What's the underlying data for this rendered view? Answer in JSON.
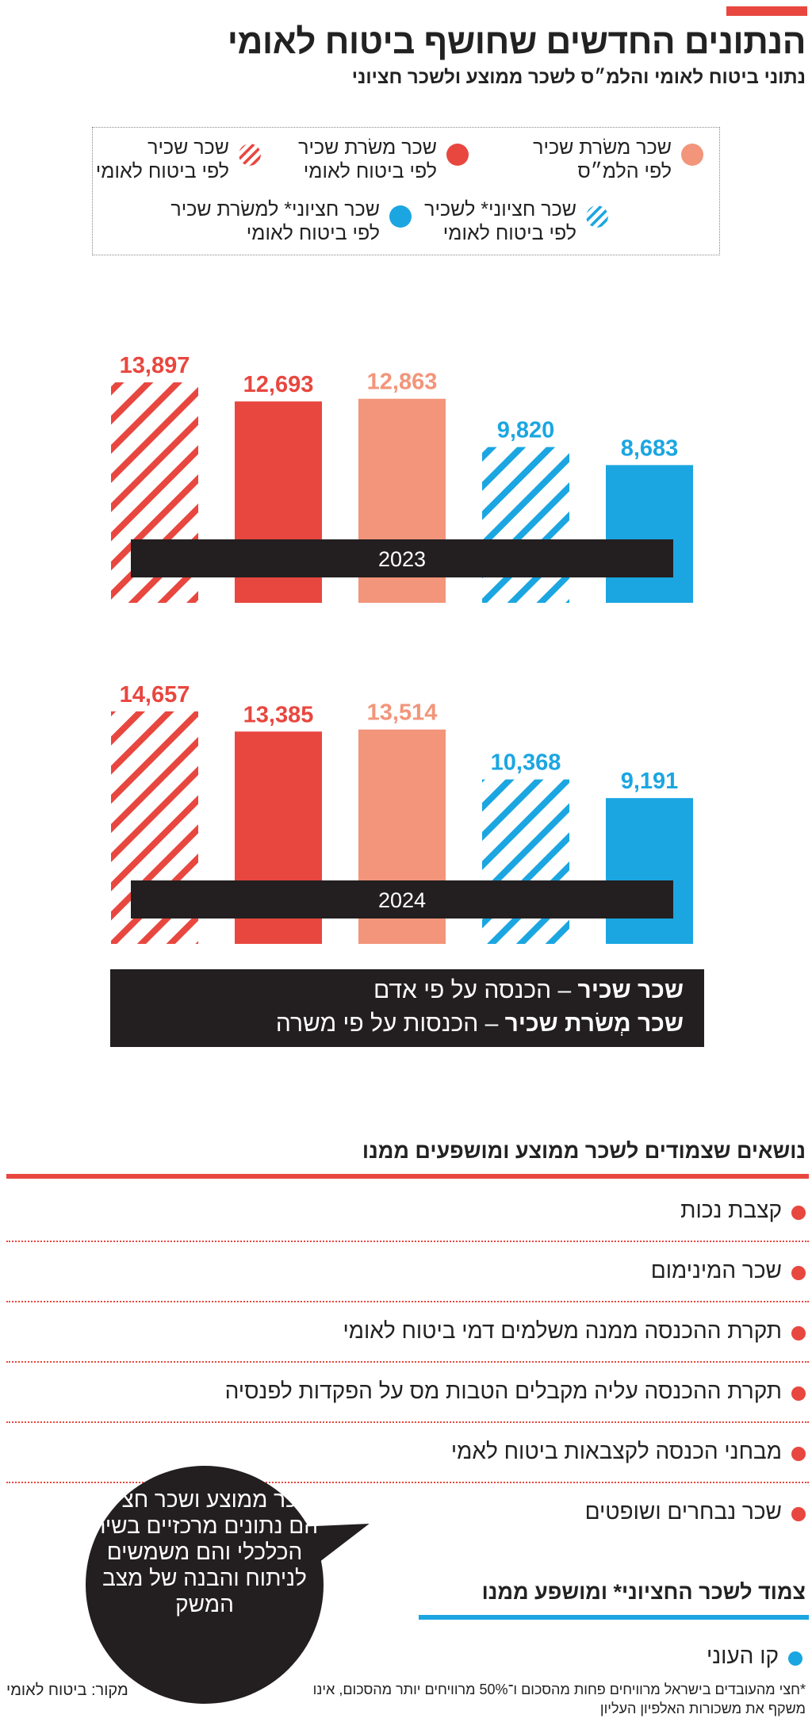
{
  "header": {
    "title": "הנתונים החדשים שחושף ביטוח לאומי",
    "subtitle": "נתוני ביטוח לאומי והלמ״ס לשכר ממוצע ולשכר חציוני"
  },
  "colors": {
    "accent_red": "#e8473f",
    "light_salmon": "#f2957a",
    "blue": "#1ba6e1",
    "dark": "#231f20"
  },
  "legend": {
    "items": [
      {
        "line1": "שכר משׂרת שכיר",
        "line2": "לפי הלמ״ס",
        "color": "#f2957a",
        "pattern": "solid"
      },
      {
        "line1": "שכר משׂרת שכיר",
        "line2": "לפי ביטוח לאומי",
        "color": "#e8473f",
        "pattern": "solid"
      },
      {
        "line1": "שכר שכיר",
        "line2": "לפי ביטוח לאומי",
        "color": "#e8473f",
        "pattern": "hatched"
      },
      {
        "line1": "שכר חציוני* לשכיר",
        "line2": "לפי ביטוח לאומי",
        "color": "#1ba6e1",
        "pattern": "hatched"
      },
      {
        "line1": "שכר חציוני* למשׂרת שכיר",
        "line2": "לפי ביטוח לאומי",
        "color": "#1ba6e1",
        "pattern": "solid"
      }
    ]
  },
  "chart_data": {
    "type": "bar",
    "categories": [
      "שכר שכיר לפי ביטוח לאומי",
      "שכר משׂרת שכיר לפי ביטוח לאומי",
      "שכר משׂרת שכיר לפי הלמ״ס",
      "שכר חציוני* לשכיר לפי ביטוח לאומי",
      "שכר חציוני* למשׂרת שכיר לפי ביטוח לאומי"
    ],
    "series": [
      {
        "name": "2023",
        "values": [
          13897,
          12693,
          12863,
          9820,
          8683
        ]
      },
      {
        "name": "2024",
        "values": [
          14657,
          13385,
          13514,
          10368,
          9191
        ]
      }
    ],
    "value_labels": {
      "2023": [
        "13,897",
        "12,693",
        "12,863",
        "9,820",
        "8,683"
      ],
      "2024": [
        "14,657",
        "13,385",
        "13,514",
        "10,368",
        "9,191"
      ]
    },
    "bar_colors": [
      "#e8473f",
      "#e8473f",
      "#f2957a",
      "#1ba6e1",
      "#1ba6e1"
    ],
    "bar_patterns": [
      "hatched",
      "solid",
      "solid",
      "hatched",
      "solid"
    ],
    "label_colors": [
      "#e8473f",
      "#e8473f",
      "#f2957a",
      "#1ba6e1",
      "#1ba6e1"
    ],
    "ylim": [
      0,
      15000
    ],
    "grid": false,
    "legend": "top"
  },
  "definitions": {
    "line1_bold": "שכר שכיר",
    "line1_rest": " – הכנסה על פי אדם",
    "line2_bold": "שכר מְשׂרת שכיר",
    "line2_rest": " – הכנסות על פי משרה"
  },
  "topics": {
    "title": "נושאים שצמודים לשכר ממוצע ומושפעים ממנו",
    "items": [
      "קצבת נכות",
      "שכר המינימום",
      "תקרת ההכנסה ממנה משלמים דמי ביטוח לאומי",
      "תקרת ההכנסה עליה מקבלים הטבות מס על הפקדות לפנסיה",
      "מבחני הכנסה לקצבאות ביטוח לאמי",
      "שכר נבחרים ושופטים"
    ]
  },
  "bubble": {
    "text": "שכר ממוצע ושכר חציוני הם נתונים מרכזיים בשיח הכלכלי והם משמשים לניתוח והבנה של מצב המשק"
  },
  "median_topics": {
    "title": "צמוד לשכר החציוני* ומושפע ממנו",
    "items": [
      "קו העוני"
    ]
  },
  "footnote": "*חצי מהעובדים בישראל מרוויחים פחות מהסכום ו־50% מרוויחים יותר מהסכום, אינו משקף את משכורות האלפיון העליון",
  "source": "מקור: ביטוח לאומי"
}
